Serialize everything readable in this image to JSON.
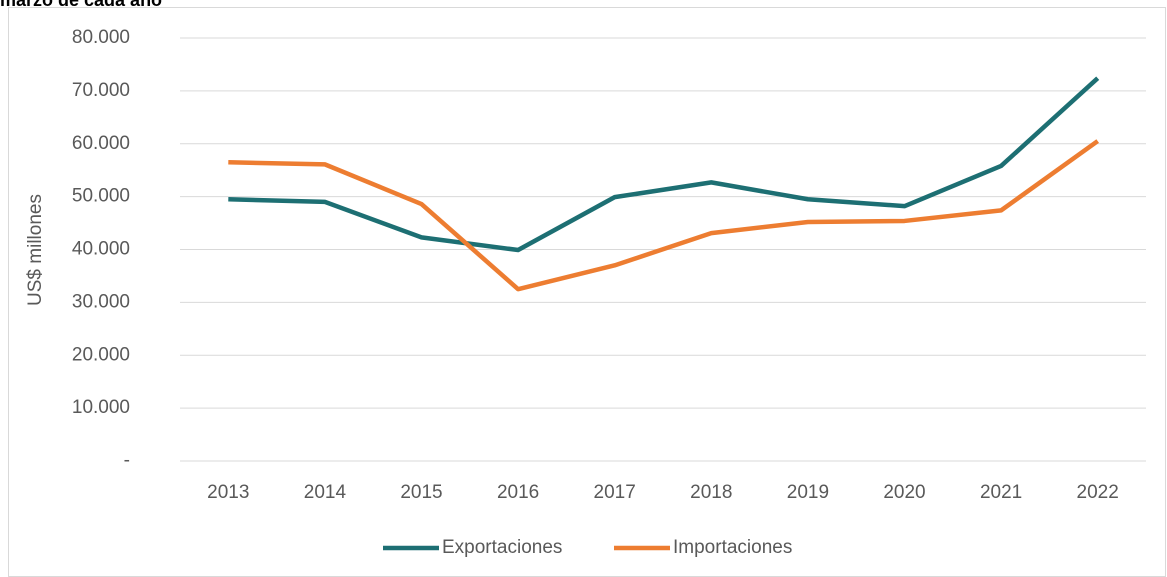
{
  "chart_data": {
    "type": "line",
    "title": "marzo de cada año",
    "y_label": "US$ millones",
    "categories": [
      "2013",
      "2014",
      "2015",
      "2016",
      "2017",
      "2018",
      "2019",
      "2020",
      "2021",
      "2022"
    ],
    "series": [
      {
        "name": "Exportaciones",
        "color": "#1d6f73",
        "values": [
          49500,
          49000,
          42300,
          39900,
          49900,
          52700,
          49500,
          48200,
          55800,
          72400
        ]
      },
      {
        "name": "Importaciones",
        "color": "#ed7d31",
        "values": [
          56500,
          56100,
          48600,
          32500,
          37000,
          43100,
          45200,
          45400,
          47400,
          60500
        ]
      }
    ],
    "ylim": [
      0,
      80000
    ],
    "yticks": [
      {
        "value": 0,
        "label": "-"
      },
      {
        "value": 10000,
        "label": "10.000"
      },
      {
        "value": 20000,
        "label": "20.000"
      },
      {
        "value": 30000,
        "label": "30.000"
      },
      {
        "value": 40000,
        "label": "40.000"
      },
      {
        "value": 50000,
        "label": "50.000"
      },
      {
        "value": 60000,
        "label": "60.000"
      },
      {
        "value": 70000,
        "label": "70.000"
      },
      {
        "value": 80000,
        "label": "80.000"
      }
    ],
    "grid": true,
    "legend": "bottom"
  }
}
